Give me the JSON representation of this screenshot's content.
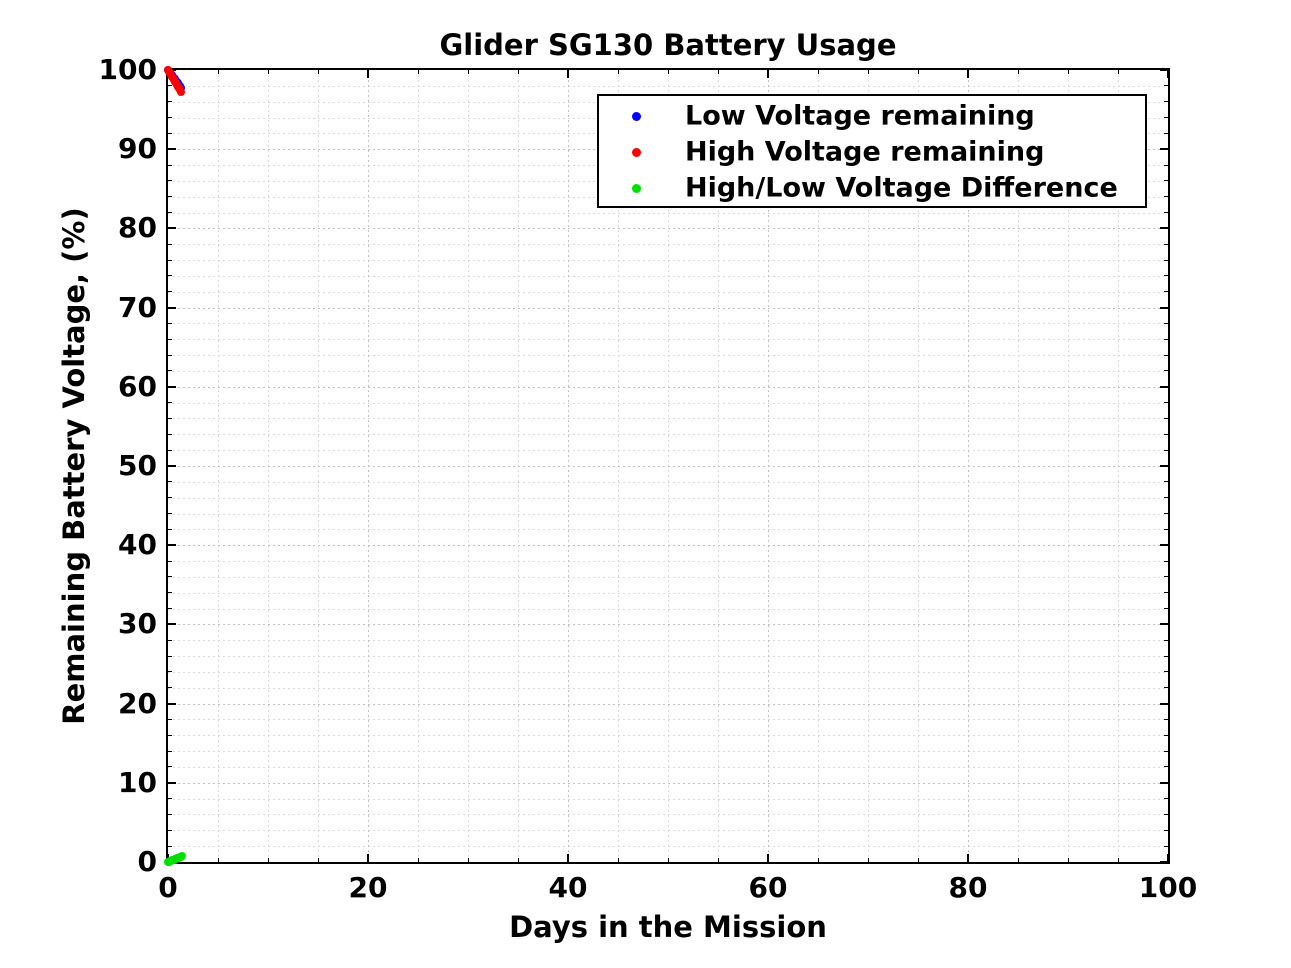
{
  "chart_data": {
    "type": "scatter",
    "title": "Glider SG130 Battery Usage",
    "xlabel": "Days in the Mission",
    "ylabel": "Remaining Battery Voltage, (%)",
    "xlim": [
      0,
      100
    ],
    "ylim": [
      0,
      100
    ],
    "xticks": [
      0,
      20,
      40,
      60,
      80,
      100
    ],
    "yticks": [
      0,
      10,
      20,
      30,
      40,
      50,
      60,
      70,
      80,
      90,
      100
    ],
    "x_minor_step": 5,
    "y_minor_step": 2,
    "grid": true,
    "minor_grid": true,
    "legend_position": "upper-right-inside",
    "series": [
      {
        "name": "Low Voltage remaining",
        "color": "#0000ff",
        "marker": "dot",
        "x": [
          0,
          0.1,
          0.2,
          0.3,
          0.4,
          0.5,
          0.6,
          0.7,
          0.8,
          0.9,
          1.0,
          1.1,
          1.2,
          1.3
        ],
        "y": [
          100,
          99.83,
          99.66,
          99.49,
          99.32,
          99.15,
          98.98,
          98.81,
          98.64,
          98.47,
          98.3,
          98.13,
          97.96,
          97.79
        ]
      },
      {
        "name": "High Voltage remaining",
        "color": "#ff0000",
        "marker": "dot",
        "x": [
          0,
          0.1,
          0.2,
          0.3,
          0.4,
          0.5,
          0.6,
          0.7,
          0.8,
          0.9,
          1.0,
          1.1,
          1.2,
          1.3
        ],
        "y": [
          100,
          99.79,
          99.58,
          99.37,
          99.16,
          98.95,
          98.74,
          98.53,
          98.32,
          98.11,
          97.9,
          97.69,
          97.48,
          97.27
        ]
      },
      {
        "name": "High/Low Voltage Difference",
        "color": "#00e000",
        "marker": "dot",
        "x": [
          0,
          0.1,
          0.2,
          0.3,
          0.4,
          0.5,
          0.6,
          0.7,
          0.8,
          0.9,
          1.0,
          1.1,
          1.2,
          1.3,
          1.4
        ],
        "y": [
          0,
          0.05,
          0.1,
          0.15,
          0.2,
          0.25,
          0.3,
          0.35,
          0.4,
          0.45,
          0.5,
          0.55,
          0.6,
          0.65,
          0.7
        ]
      }
    ]
  },
  "colors": {
    "axis": "#000000",
    "text": "#000000",
    "grid_major": "#c0c0c0",
    "grid_minor": "#d9d9d9",
    "legend_border": "#000000",
    "legend_background": "#ffffff",
    "plot_background": "#ffffff"
  }
}
